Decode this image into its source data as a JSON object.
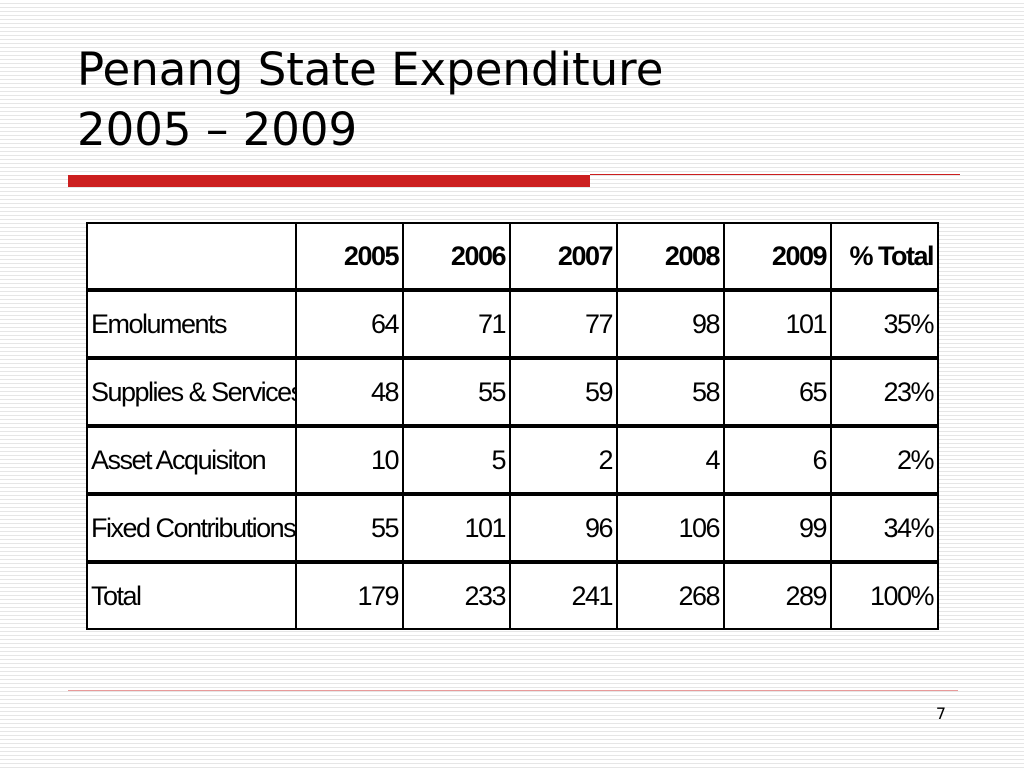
{
  "slide": {
    "title_line1": "Penang State Expenditure",
    "title_line2": "2005 – 2009",
    "page_number": "7",
    "accent_color": "#cc1f1f"
  },
  "chart_data": {
    "type": "table",
    "columns": [
      "",
      "2005",
      "2006",
      "2007",
      "2008",
      "2009",
      "% Total"
    ],
    "rows": [
      {
        "label": "Emoluments",
        "cells": [
          "64",
          "71",
          "77",
          "98",
          "101",
          "35%"
        ]
      },
      {
        "label": "Supplies & Services",
        "cells": [
          "48",
          "55",
          "59",
          "58",
          "65",
          "23%"
        ]
      },
      {
        "label": "Asset Acquisiton",
        "cells": [
          "10",
          "5",
          "2",
          "4",
          "6",
          "2%"
        ]
      },
      {
        "label": "Fixed Contributions",
        "cells": [
          "55",
          "101",
          "96",
          "106",
          "99",
          "34%"
        ]
      },
      {
        "label": "Total",
        "cells": [
          "179",
          "233",
          "241",
          "268",
          "289",
          "100%"
        ]
      }
    ]
  }
}
